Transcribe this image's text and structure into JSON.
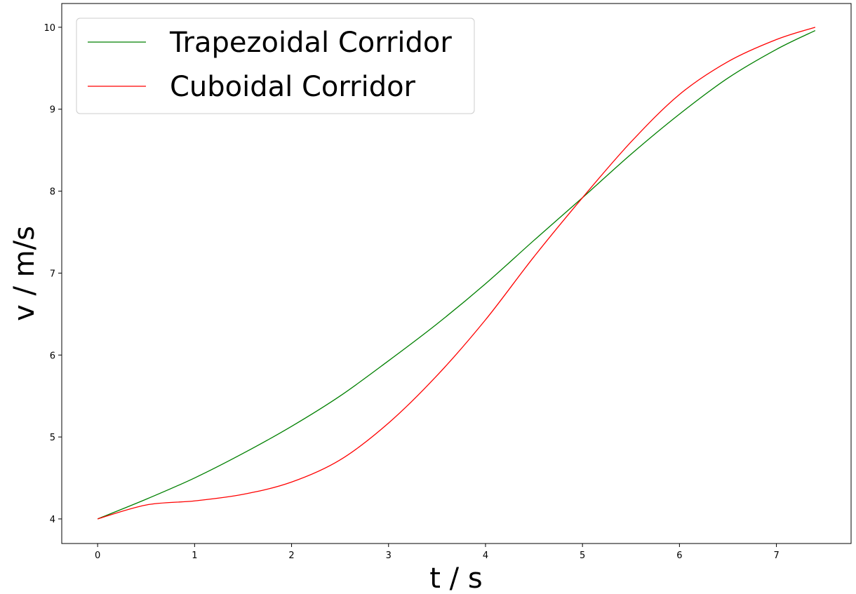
{
  "chart_data": {
    "type": "line",
    "x_label": "t / s",
    "y_label": "v / m/s",
    "x": [
      0,
      0.5,
      1,
      1.5,
      2,
      2.5,
      3,
      3.5,
      4,
      4.5,
      5,
      5.5,
      6,
      6.5,
      7,
      7.4
    ],
    "series": [
      {
        "name": "Trapezoidal Corridor",
        "color": "green",
        "values": [
          4.0,
          4.24,
          4.5,
          4.8,
          5.13,
          5.5,
          5.93,
          6.38,
          6.87,
          7.4,
          7.92,
          8.45,
          8.94,
          9.38,
          9.73,
          9.96
        ]
      },
      {
        "name": "Cuboidal Corridor",
        "color": "red",
        "values": [
          4.0,
          4.17,
          4.22,
          4.3,
          4.45,
          4.72,
          5.17,
          5.75,
          6.43,
          7.2,
          7.92,
          8.6,
          9.18,
          9.58,
          9.85,
          10.0
        ]
      }
    ],
    "xlim": [
      -0.37,
      7.77
    ],
    "xticks": [
      0,
      1,
      2,
      3,
      4,
      5,
      6,
      7
    ],
    "ylim": [
      3.7,
      10.29
    ],
    "yticks": [
      4,
      5,
      6,
      7,
      8,
      9,
      10
    ],
    "legend": "upper left"
  }
}
